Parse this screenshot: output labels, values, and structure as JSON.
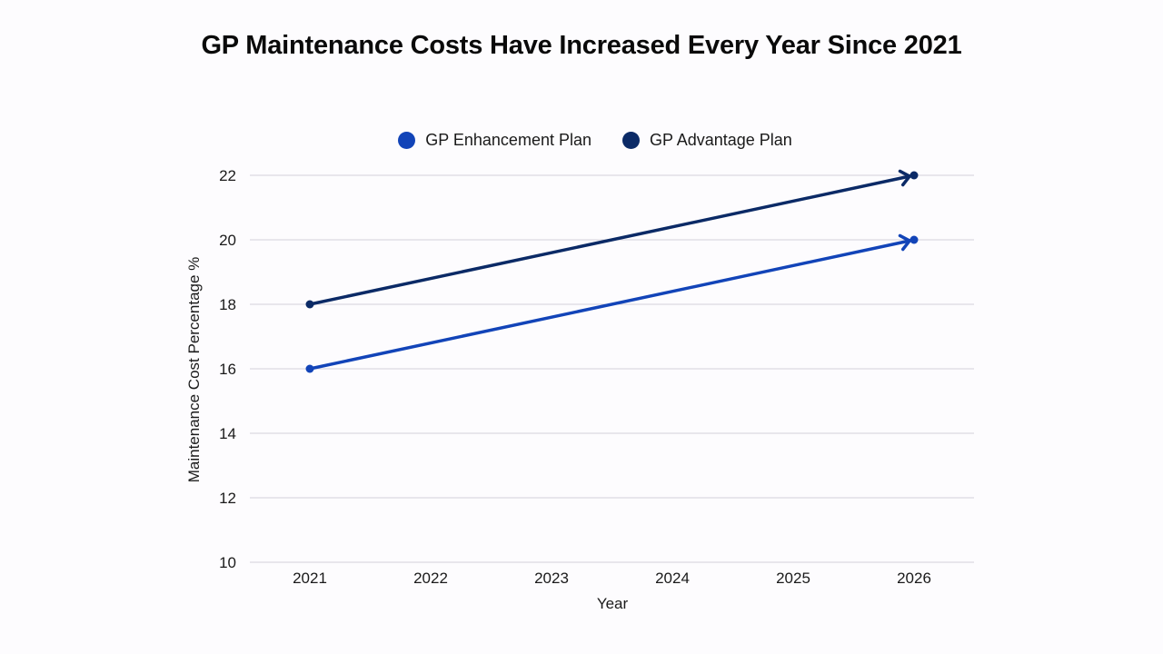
{
  "chart_data": {
    "type": "line",
    "title": "GP Maintenance Costs Have Increased Every Year Since 2021",
    "xlabel": "Year",
    "ylabel": "Maintenance Cost Percentage %",
    "categories": [
      "2021",
      "2022",
      "2023",
      "2024",
      "2025",
      "2026"
    ],
    "ylim": [
      10,
      22
    ],
    "yticks": [
      10,
      12,
      14,
      16,
      18,
      20,
      22
    ],
    "grid": true,
    "legend_position": "top-center",
    "series": [
      {
        "name": "GP Enhancement Plan",
        "color": "#1244b8",
        "points": [
          {
            "x": "2021",
            "y": 16
          },
          {
            "x": "2026",
            "y": 20
          }
        ],
        "end_arrow": true
      },
      {
        "name": "GP Advantage Plan",
        "color": "#0b2a66",
        "points": [
          {
            "x": "2021",
            "y": 18
          },
          {
            "x": "2026",
            "y": 22
          }
        ],
        "end_arrow": true
      }
    ],
    "gridline_color": "#d4d0da"
  }
}
